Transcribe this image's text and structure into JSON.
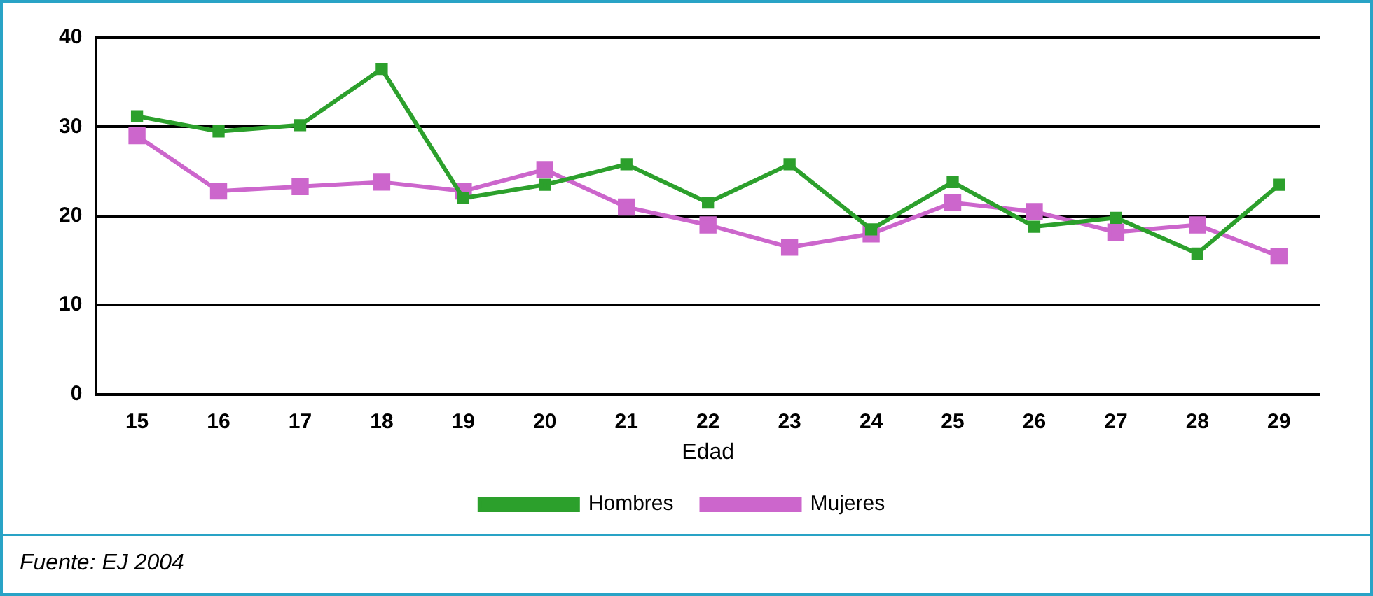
{
  "chart_data": {
    "type": "line",
    "xlabel": "Edad",
    "categories": [
      "15",
      "16",
      "17",
      "18",
      "19",
      "20",
      "21",
      "22",
      "23",
      "24",
      "25",
      "26",
      "27",
      "28",
      "29"
    ],
    "series": [
      {
        "name": "Hombres",
        "color": "#2ca02c",
        "values": [
          31.2,
          29.5,
          30.2,
          36.5,
          22,
          23.5,
          25.8,
          21.5,
          25.8,
          18.5,
          23.8,
          18.8,
          19.8,
          15.8,
          23.5
        ]
      },
      {
        "name": "Mujeres",
        "color": "#cc66cc",
        "values": [
          29,
          22.8,
          23.3,
          23.8,
          22.8,
          25.2,
          21,
          19,
          16.5,
          18,
          21.5,
          20.5,
          18.2,
          19,
          15.5
        ]
      }
    ],
    "ylim": [
      0,
      40
    ],
    "yticks": [
      0,
      10,
      20,
      30,
      40
    ],
    "grid": "y",
    "legend": "bottom",
    "marker": "square",
    "line_style": "solid",
    "annotations": [
      "Fuente: EJ 2004"
    ]
  }
}
